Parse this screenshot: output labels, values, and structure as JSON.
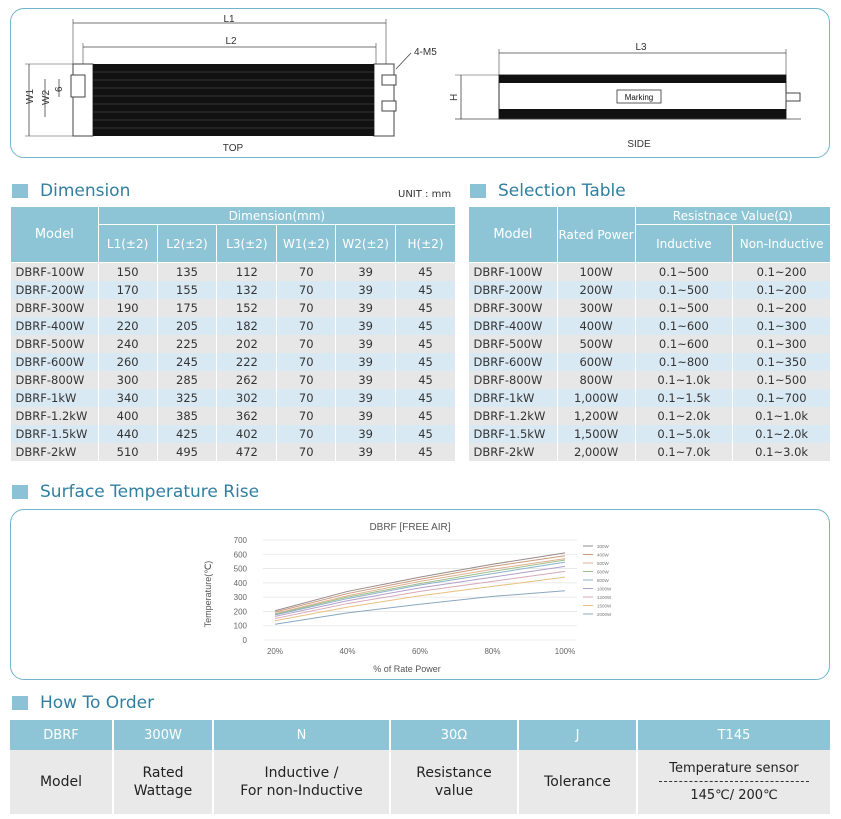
{
  "drawing": {
    "top_labels": {
      "l1": "L1",
      "l2": "L2",
      "w1": "W1",
      "w2": "W2",
      "six": "6",
      "screw": "4-M5",
      "caption": "TOP"
    },
    "side_labels": {
      "l3": "L3",
      "h": "H",
      "marking": "Marking",
      "caption": "SIDE"
    }
  },
  "dimension": {
    "title": "Dimension",
    "unit": "UNIT : mm",
    "group_header": "Dimension(mm)",
    "columns": [
      "Model",
      "L1(±2)",
      "L2(±2)",
      "L3(±2)",
      "W1(±2)",
      "W2(±2)",
      "H(±2)"
    ],
    "rows": [
      [
        "DBRF-100W",
        "150",
        "135",
        "112",
        "70",
        "39",
        "45"
      ],
      [
        "DBRF-200W",
        "170",
        "155",
        "132",
        "70",
        "39",
        "45"
      ],
      [
        "DBRF-300W",
        "190",
        "175",
        "152",
        "70",
        "39",
        "45"
      ],
      [
        "DBRF-400W",
        "220",
        "205",
        "182",
        "70",
        "39",
        "45"
      ],
      [
        "DBRF-500W",
        "240",
        "225",
        "202",
        "70",
        "39",
        "45"
      ],
      [
        "DBRF-600W",
        "260",
        "245",
        "222",
        "70",
        "39",
        "45"
      ],
      [
        "DBRF-800W",
        "300",
        "285",
        "262",
        "70",
        "39",
        "45"
      ],
      [
        "DBRF-1kW",
        "340",
        "325",
        "302",
        "70",
        "39",
        "45"
      ],
      [
        "DBRF-1.2kW",
        "400",
        "385",
        "362",
        "70",
        "39",
        "45"
      ],
      [
        "DBRF-1.5kW",
        "440",
        "425",
        "402",
        "70",
        "39",
        "45"
      ],
      [
        "DBRF-2kW",
        "510",
        "495",
        "472",
        "70",
        "39",
        "45"
      ]
    ]
  },
  "selection": {
    "title": "Selection Table",
    "group_header": "Resistnace Value(Ω)",
    "columns": [
      "Model",
      "Rated Power",
      "Inductive",
      "Non-Inductive"
    ],
    "rows": [
      [
        "DBRF-100W",
        "100W",
        "0.1~500",
        "0.1~200"
      ],
      [
        "DBRF-200W",
        "200W",
        "0.1~500",
        "0.1~200"
      ],
      [
        "DBRF-300W",
        "300W",
        "0.1~500",
        "0.1~200"
      ],
      [
        "DBRF-400W",
        "400W",
        "0.1~600",
        "0.1~300"
      ],
      [
        "DBRF-500W",
        "500W",
        "0.1~600",
        "0.1~300"
      ],
      [
        "DBRF-600W",
        "600W",
        "0.1~800",
        "0.1~350"
      ],
      [
        "DBRF-800W",
        "800W",
        "0.1~1.0k",
        "0.1~500"
      ],
      [
        "DBRF-1kW",
        "1,000W",
        "0.1~1.5k",
        "0.1~700"
      ],
      [
        "DBRF-1.2kW",
        "1,200W",
        "0.1~2.0k",
        "0.1~1.0k"
      ],
      [
        "DBRF-1.5kW",
        "1,500W",
        "0.1~5.0k",
        "0.1~2.0k"
      ],
      [
        "DBRF-2kW",
        "2,000W",
        "0.1~7.0k",
        "0.1~3.0k"
      ]
    ]
  },
  "surface": {
    "title": "Surface Temperature Rise"
  },
  "chart_data": {
    "type": "line",
    "title": "DBRF [FREE AIR]",
    "xlabel": "% of Rate Power",
    "ylabel": "Temperature(℃)",
    "categories": [
      "20%",
      "40%",
      "60%",
      "80%",
      "100%"
    ],
    "yticks": [
      "0",
      "100",
      "200",
      "300",
      "400",
      "500",
      "600",
      "700"
    ],
    "ylim": [
      0,
      700
    ],
    "grid": true,
    "legend_position": "right",
    "series": [
      {
        "name": "300W",
        "color": "#9a8a8a",
        "values": [
          205,
          340,
          440,
          530,
          610
        ]
      },
      {
        "name": "400W",
        "color": "#c89a7a",
        "values": [
          195,
          325,
          425,
          515,
          590
        ]
      },
      {
        "name": "500W",
        "color": "#e0b090",
        "values": [
          185,
          310,
          410,
          495,
          570
        ]
      },
      {
        "name": "600W",
        "color": "#9bbf8a",
        "values": [
          180,
          300,
          395,
          480,
          560
        ]
      },
      {
        "name": "800W",
        "color": "#8fb0c8",
        "values": [
          175,
          290,
          385,
          465,
          545
        ]
      },
      {
        "name": "1000W",
        "color": "#b0a0c8",
        "values": [
          165,
          275,
          365,
          440,
          515
        ]
      },
      {
        "name": "1200W",
        "color": "#d8a8b8",
        "values": [
          150,
          255,
          340,
          410,
          480
        ]
      },
      {
        "name": "1500W",
        "color": "#e8c080",
        "values": [
          135,
          230,
          310,
          375,
          440
        ]
      },
      {
        "name": "2000W",
        "color": "#88a8c0",
        "values": [
          110,
          190,
          250,
          305,
          345
        ]
      }
    ]
  },
  "order": {
    "title": "How To Order",
    "cells": [
      {
        "code": "DBRF",
        "desc": "Model"
      },
      {
        "code": "300W",
        "desc": "Rated\nWattage"
      },
      {
        "code": "N",
        "desc": "Inductive /\nFor non-Inductive"
      },
      {
        "code": "30Ω",
        "desc": "Resistance\nvalue"
      },
      {
        "code": "J",
        "desc": "Tolerance"
      },
      {
        "code": "T145",
        "desc": "Temperature sensor",
        "sub": "145℃/ 200℃"
      }
    ]
  }
}
